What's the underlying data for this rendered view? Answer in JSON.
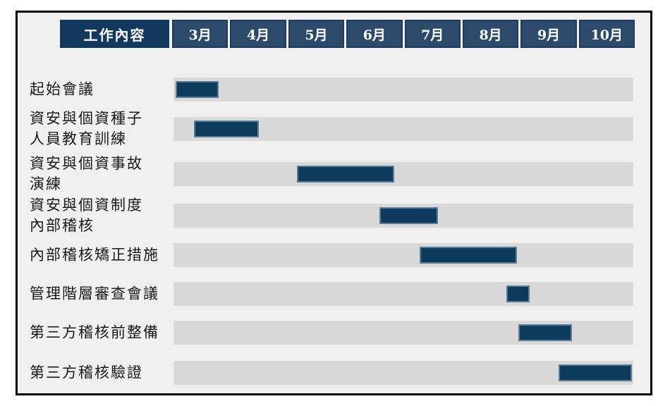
{
  "chart_data": {
    "type": "gantt",
    "title": "",
    "header": {
      "work_label": "工作內容",
      "months": [
        "3月",
        "4月",
        "5月",
        "6月",
        "7月",
        "8月",
        "9月",
        "10月"
      ]
    },
    "month_axis_range": [
      0,
      8
    ],
    "tasks": [
      {
        "label": "起始會議",
        "label_lines": [
          "起始會議"
        ],
        "start": 0.04,
        "end": 0.79
      },
      {
        "label": "資安與個資種子人員教育訓練",
        "label_lines": [
          "資安與個資種子",
          "人員教育訓練"
        ],
        "start": 0.35,
        "end": 1.48
      },
      {
        "label": "資安與個資事故演練",
        "label_lines": [
          "資安與個資事故",
          "演練"
        ],
        "start": 2.15,
        "end": 3.84
      },
      {
        "label": "資安與個資制度內部稽核",
        "label_lines": [
          "資安與個資制度",
          "內部稽核"
        ],
        "start": 3.58,
        "end": 4.6
      },
      {
        "label": "內部稽核矯正措施",
        "label_lines": [
          "內部稽核矯正措施"
        ],
        "start": 4.28,
        "end": 5.97
      },
      {
        "label": "管理階層審查會議",
        "label_lines": [
          "管理階層審查會議"
        ],
        "start": 5.79,
        "end": 6.2
      },
      {
        "label": "第三方稽核前整備",
        "label_lines": [
          "第三方稽核前整備"
        ],
        "start": 6.0,
        "end": 6.93
      },
      {
        "label": "第三方稽核驗證",
        "label_lines": [
          "第三方稽核驗證"
        ],
        "start": 6.7,
        "end": 7.98
      }
    ],
    "colors": {
      "bar_fill": "#0e3a5c",
      "bar_border": "#5a7d99",
      "track": "#d9d9d9",
      "header_month_bg": "#2e4a6b",
      "header_month_border": "#1d3c60",
      "header_label_bg": "#14395e",
      "header_text": "#ffffff",
      "label_text": "#1a1a1a",
      "chart_bg": "#f0f0f0",
      "chart_border": "#000000"
    }
  }
}
